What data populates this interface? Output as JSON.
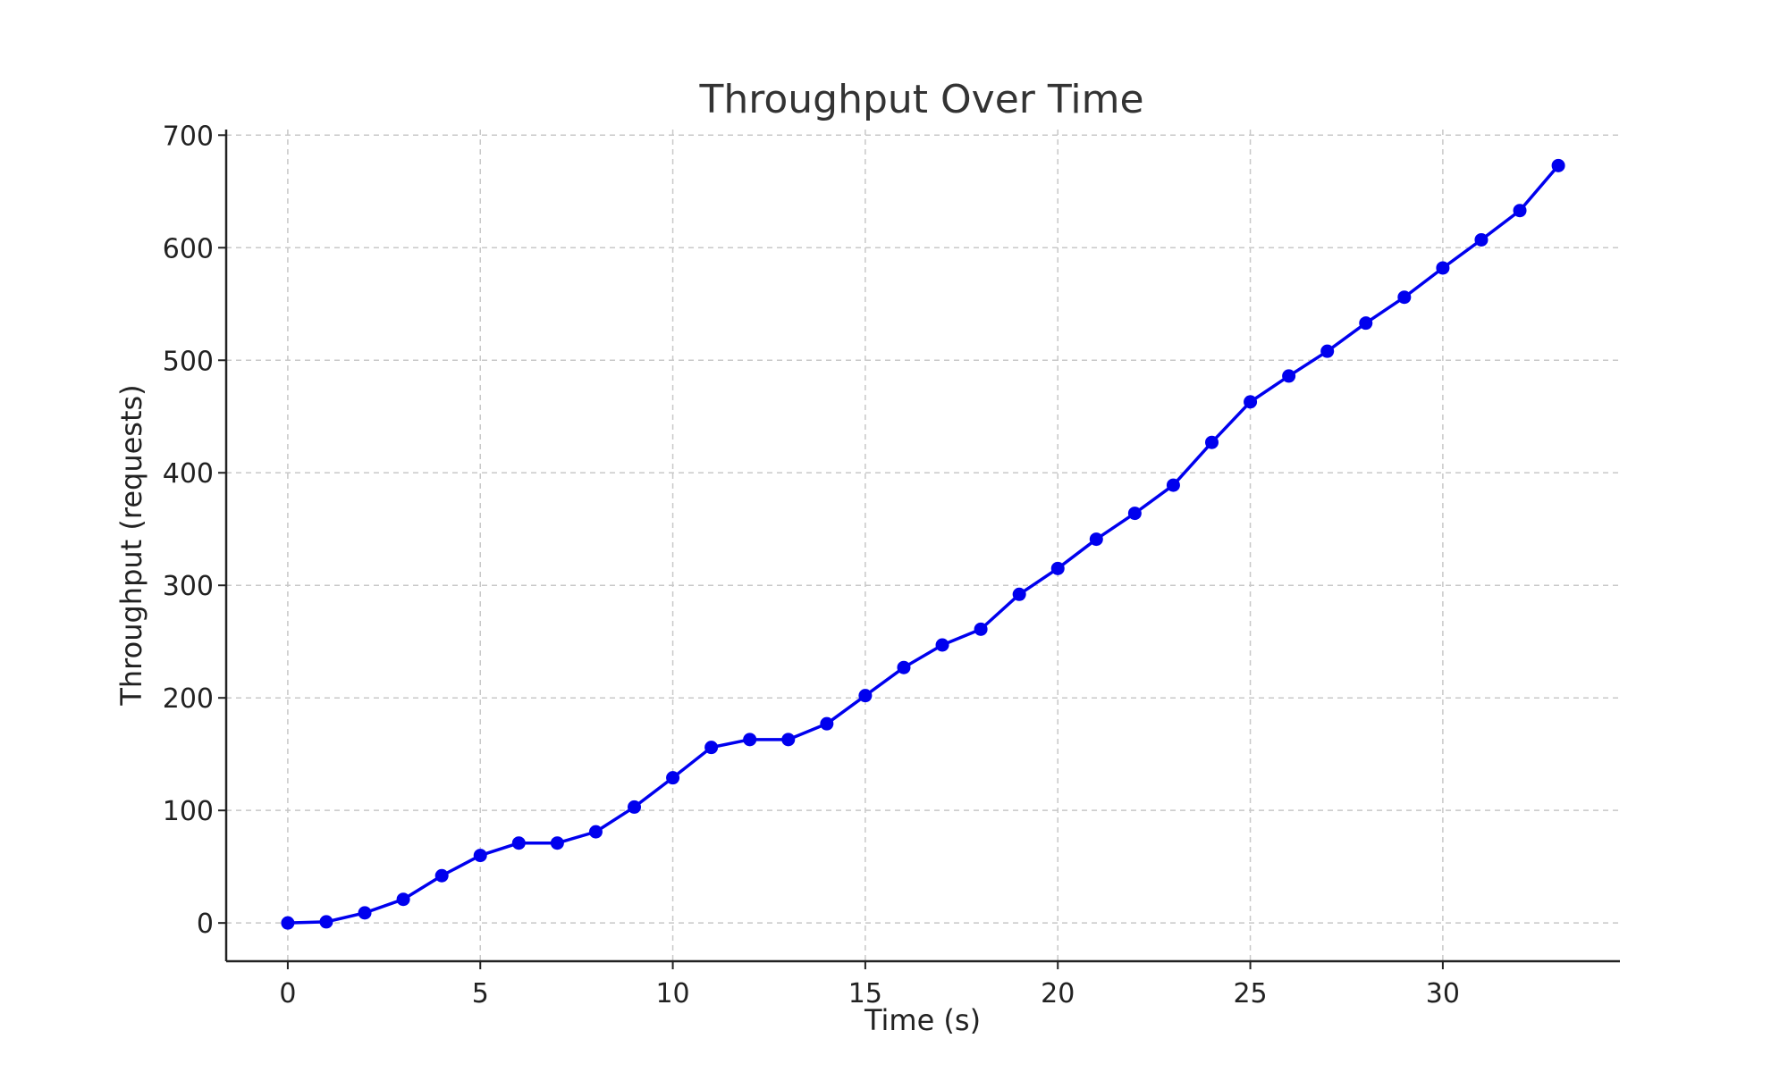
{
  "chart_data": {
    "type": "line",
    "title": "Throughput Over Time",
    "xlabel": "Time (s)",
    "ylabel": "Throughput (requests)",
    "xlim": [
      -1.6,
      34.6
    ],
    "ylim": [
      -34,
      705
    ],
    "xticks": [
      0,
      5,
      10,
      15,
      20,
      25,
      30
    ],
    "yticks": [
      0,
      100,
      200,
      300,
      400,
      500,
      600,
      700
    ],
    "grid": true,
    "series": [
      {
        "name": "Throughput",
        "color": "#0000ee",
        "marker": "circle",
        "x": [
          0,
          1,
          2,
          3,
          4,
          5,
          6,
          7,
          8,
          9,
          10,
          11,
          12,
          13,
          14,
          15,
          16,
          17,
          18,
          19,
          20,
          21,
          22,
          23,
          24,
          25,
          26,
          27,
          28,
          29,
          30,
          31,
          32,
          33
        ],
        "values": [
          0,
          1,
          9,
          21,
          42,
          60,
          71,
          71,
          81,
          103,
          129,
          156,
          163,
          163,
          177,
          202,
          227,
          247,
          261,
          292,
          315,
          341,
          364,
          389,
          427,
          463,
          486,
          508,
          533,
          556,
          582,
          607,
          633,
          673
        ]
      }
    ]
  }
}
